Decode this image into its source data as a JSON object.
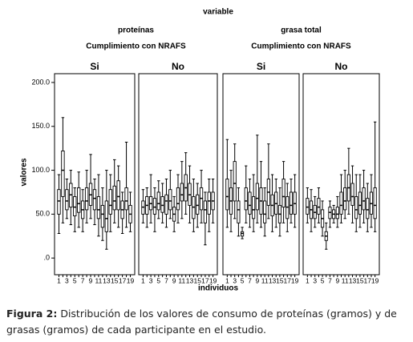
{
  "chart_data": {
    "type": "boxplot",
    "title": "variable",
    "ylabel": "valores",
    "xlabel": "individuos",
    "categories": [
      "1",
      null,
      "3",
      null,
      "5",
      null,
      "7",
      null,
      "9",
      null,
      "11",
      null,
      "13",
      null,
      "15",
      null,
      "17",
      null,
      "19"
    ],
    "ylim": [
      -19,
      210
    ],
    "yticks": [
      {
        "value": 0,
        "label": ".0"
      },
      {
        "value": 50,
        "label": "50.0"
      },
      {
        "value": 100,
        "label": "100.0"
      },
      {
        "value": 150,
        "label": "150.0"
      },
      {
        "value": 200,
        "label": "200.0"
      }
    ],
    "groups": [
      {
        "name": "proteínas",
        "subtitle": "Cumplimiento con NRAFS",
        "panels": [
          {
            "name": "Si",
            "boxes": [
              [
                28,
                50,
                65,
                78,
                95
              ],
              [
                40,
                70,
                100,
                122,
                160
              ],
              [
                45,
                55,
                65,
                78,
                90
              ],
              [
                38,
                58,
                72,
                85,
                100
              ],
              [
                30,
                48,
                58,
                70,
                80
              ],
              [
                35,
                52,
                62,
                80,
                98
              ],
              [
                30,
                45,
                55,
                65,
                78
              ],
              [
                40,
                55,
                65,
                80,
                100
              ],
              [
                45,
                60,
                72,
                85,
                118
              ],
              [
                38,
                55,
                68,
                78,
                90
              ],
              [
                25,
                45,
                55,
                70,
                95
              ],
              [
                20,
                35,
                50,
                60,
                80
              ],
              [
                10,
                30,
                45,
                65,
                100
              ],
              [
                30,
                50,
                60,
                78,
                95
              ],
              [
                40,
                55,
                65,
                82,
                112
              ],
              [
                35,
                55,
                70,
                88,
                105
              ],
              [
                28,
                45,
                55,
                65,
                75
              ],
              [
                35,
                55,
                65,
                80,
                132
              ],
              [
                30,
                40,
                50,
                60,
                75
              ]
            ]
          },
          {
            "name": "No",
            "boxes": [
              [
                40,
                50,
                58,
                65,
                78
              ],
              [
                35,
                50,
                60,
                70,
                80
              ],
              [
                40,
                55,
                62,
                70,
                95
              ],
              [
                30,
                50,
                58,
                68,
                80
              ],
              [
                45,
                55,
                62,
                75,
                88
              ],
              [
                40,
                52,
                60,
                70,
                85
              ],
              [
                35,
                50,
                65,
                72,
                90
              ],
              [
                45,
                55,
                65,
                78,
                100
              ],
              [
                30,
                42,
                50,
                58,
                70
              ],
              [
                40,
                55,
                62,
                80,
                95
              ],
              [
                45,
                65,
                72,
                85,
                110
              ],
              [
                50,
                65,
                80,
                95,
                120
              ],
              [
                40,
                60,
                72,
                85,
                105
              ],
              [
                30,
                45,
                58,
                70,
                90
              ],
              [
                35,
                50,
                60,
                72,
                85
              ],
              [
                40,
                55,
                68,
                80,
                100
              ],
              [
                15,
                40,
                55,
                65,
                75
              ],
              [
                30,
                50,
                65,
                75,
                90
              ],
              [
                40,
                55,
                65,
                75,
                90
              ]
            ]
          }
        ]
      },
      {
        "name": "grasa total",
        "subtitle": "Cumplimiento con NRAFS",
        "panels": [
          {
            "name": "Si",
            "boxes": [
              [
                35,
                55,
                70,
                90,
                135
              ],
              [
                30,
                50,
                65,
                80,
                100
              ],
              [
                45,
                65,
                85,
                110,
                130
              ],
              [
                25,
                40,
                55,
                65,
                80
              ],
              [
                22,
                25,
                28,
                30,
                35
              ],
              [
                40,
                55,
                65,
                80,
                105
              ],
              [
                35,
                50,
                60,
                75,
                90
              ],
              [
                30,
                45,
                55,
                70,
                95
              ],
              [
                40,
                55,
                68,
                85,
                140
              ],
              [
                35,
                50,
                65,
                80,
                110
              ],
              [
                25,
                40,
                50,
                65,
                80
              ],
              [
                45,
                60,
                75,
                90,
                130
              ],
              [
                30,
                48,
                60,
                72,
                95
              ],
              [
                35,
                50,
                62,
                75,
                90
              ],
              [
                25,
                40,
                50,
                60,
                80
              ],
              [
                40,
                58,
                70,
                90,
                110
              ],
              [
                30,
                45,
                58,
                70,
                85
              ],
              [
                40,
                50,
                60,
                75,
                90
              ],
              [
                35,
                50,
                62,
                75,
                95
              ]
            ]
          },
          {
            "name": "No",
            "boxes": [
              [
                40,
                50,
                58,
                68,
                80
              ],
              [
                30,
                45,
                55,
                65,
                78
              ],
              [
                35,
                45,
                52,
                60,
                70
              ],
              [
                40,
                50,
                58,
                68,
                80
              ],
              [
                25,
                35,
                45,
                55,
                65
              ],
              [
                10,
                20,
                25,
                30,
                40
              ],
              [
                35,
                45,
                52,
                58,
                65
              ],
              [
                40,
                45,
                50,
                55,
                60
              ],
              [
                35,
                45,
                50,
                58,
                70
              ],
              [
                40,
                50,
                60,
                75,
                95
              ],
              [
                45,
                55,
                65,
                80,
                100
              ],
              [
                50,
                65,
                80,
                95,
                125
              ],
              [
                40,
                60,
                70,
                85,
                105
              ],
              [
                30,
                45,
                55,
                70,
                95
              ],
              [
                35,
                50,
                60,
                75,
                95
              ],
              [
                40,
                55,
                65,
                80,
                100
              ],
              [
                30,
                45,
                55,
                68,
                85
              ],
              [
                35,
                50,
                62,
                75,
                95
              ],
              [
                30,
                45,
                60,
                80,
                155
              ]
            ]
          }
        ]
      }
    ]
  },
  "caption": {
    "label": "Figura 2:",
    "text": "Distribución de los valores de consumo  de proteínas (gramos) y de grasas (gramos) de cada participante en el estudio."
  }
}
